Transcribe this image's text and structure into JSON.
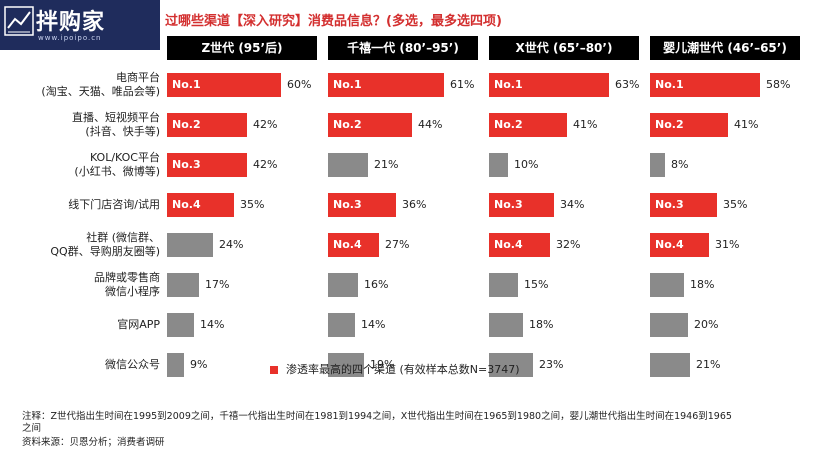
{
  "logo": {
    "main": "拌购家",
    "sub": "www.ipoipo.cn"
  },
  "title": "过哪些渠道【深入研究】消费品信息？(多选，最多选四项)",
  "legend": {
    "label": "渗透率最高的四个渠道 (有效样本总数N=3747)",
    "color": "#e8312a"
  },
  "notes": [
    "注释：Z世代指出生时间在1995到2009之间，千禧一代指出生时间在1981到1994之间，X世代指出生时间在1965到1980之间，婴儿潮世代指出生时间在1946到1965",
    "之间",
    "资料来源：贝恩分析；消费者调研"
  ],
  "colors": {
    "top4": "#e8312a",
    "other": "#8a8a8a",
    "header": "#000000"
  },
  "chart_data": {
    "type": "bar",
    "orientation": "horizontal",
    "unit": "%",
    "categories": [
      "电商平台\n(淘宝、天猫、唯品会等)",
      "直播、短视频平台\n(抖音、快手等)",
      "KOL/KOC平台\n(小红书、微博等)",
      "线下门店咨询/试用",
      "社群 (微信群、\nQQ群、导购朋友圈等)",
      "品牌或零售商\n微信小程序",
      "官网APP",
      "微信公众号"
    ],
    "series": [
      {
        "name": "Z世代 (95’后)",
        "values": [
          60,
          42,
          42,
          35,
          24,
          17,
          14,
          9
        ],
        "ranks": [
          "No.1",
          "No.2",
          "No.3",
          "No.4",
          "",
          "",
          "",
          ""
        ]
      },
      {
        "name": "千禧一代 (80’–95’)",
        "values": [
          61,
          44,
          21,
          36,
          27,
          16,
          14,
          19
        ],
        "ranks": [
          "No.1",
          "No.2",
          "",
          "No.3",
          "No.4",
          "",
          "",
          ""
        ]
      },
      {
        "name": "X世代 (65’–80’)",
        "values": [
          63,
          41,
          10,
          34,
          32,
          15,
          18,
          23
        ],
        "ranks": [
          "No.1",
          "No.2",
          "",
          "No.3",
          "No.4",
          "",
          "",
          ""
        ]
      },
      {
        "name": "婴儿潮世代 (46’–65’)",
        "values": [
          58,
          41,
          8,
          35,
          31,
          18,
          20,
          21
        ],
        "ranks": [
          "No.1",
          "No.2",
          "",
          "No.3",
          "No.4",
          "",
          "",
          ""
        ]
      }
    ]
  }
}
